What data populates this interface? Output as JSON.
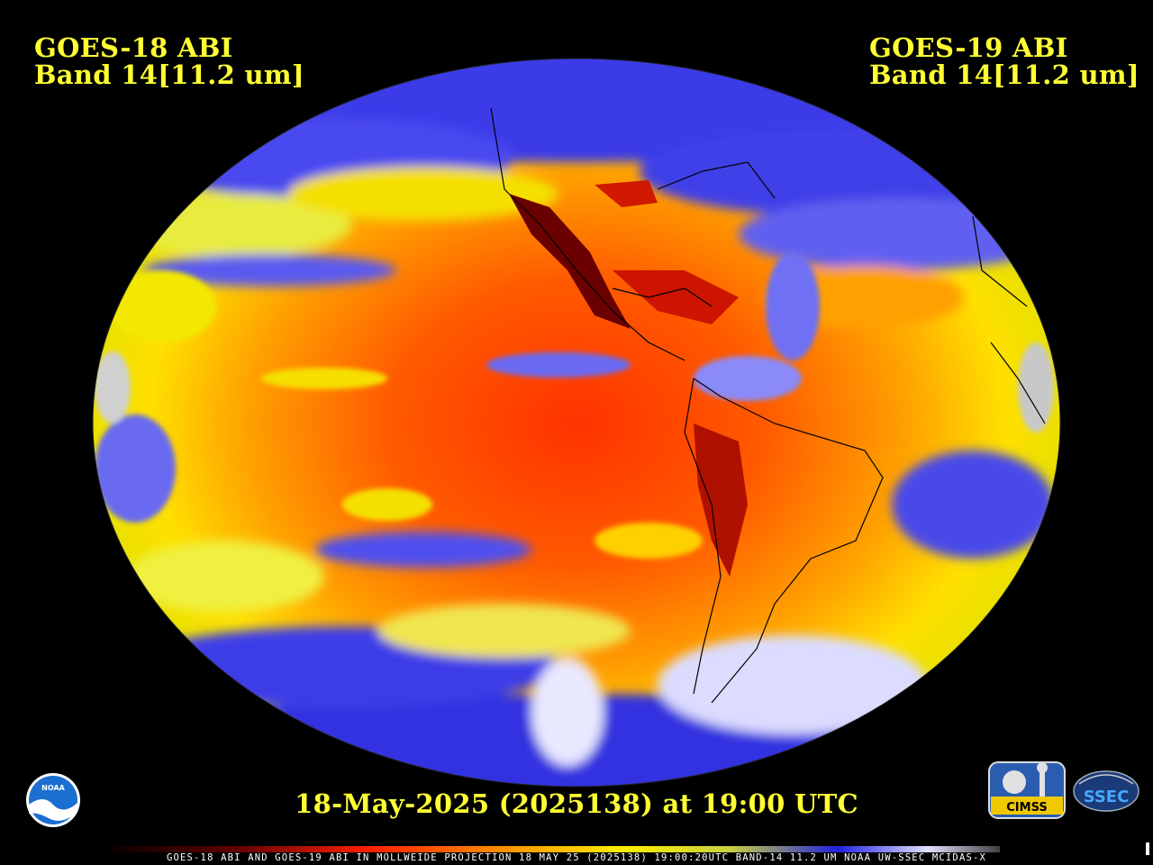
{
  "header": {
    "left_line1": "GOES-18 ABI",
    "left_line2": "Band 14[11.2 um]",
    "right_line1": "GOES-19 ABI",
    "right_line2": "Band 14[11.2 um]"
  },
  "timestamp": "18-May-2025 (2025138) at 19:00 UTC",
  "footer": "GOES-18 ABI AND GOES-19 ABI IN MOLLWEIDE PROJECTION 18 MAY 25 (2025138) 19:00:20UTC BAND-14 11.2 UM NOAA UW-SSEC MCIDAS-X",
  "logos": {
    "noaa": "NOAA",
    "cimss": "CIMSS",
    "ssec": "SSEC"
  },
  "colors": {
    "text": "#ffff33",
    "background": "#000000",
    "warm": "#ff3a00",
    "mid": "#ffa000",
    "cool": "#ffee00",
    "cold": "#2a2ae0",
    "coldest": "#e0e0ff"
  }
}
